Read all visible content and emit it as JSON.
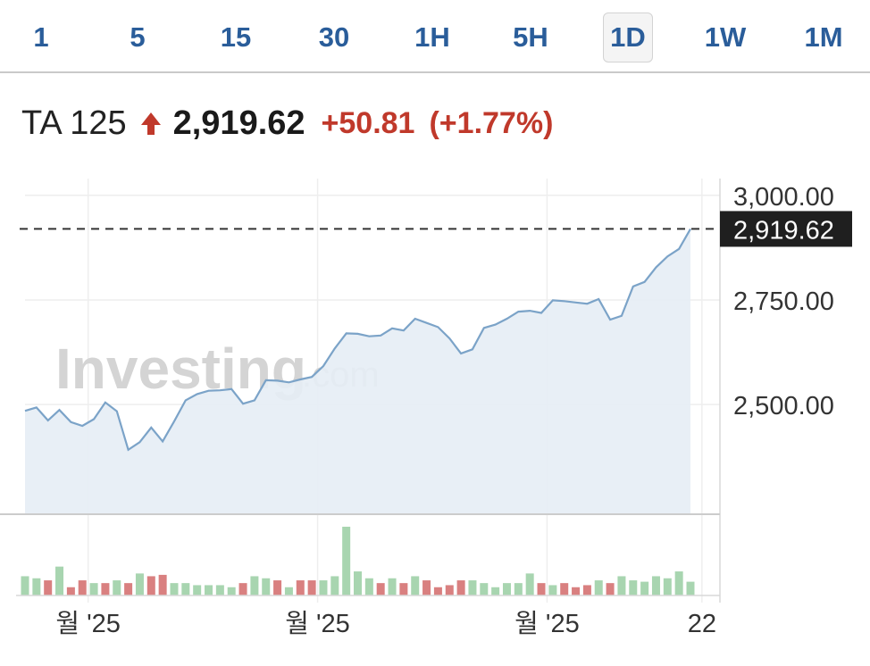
{
  "tabs": [
    {
      "label": "1",
      "active": false
    },
    {
      "label": "5",
      "active": false
    },
    {
      "label": "15",
      "active": false
    },
    {
      "label": "30",
      "active": false
    },
    {
      "label": "1H",
      "active": false
    },
    {
      "label": "5H",
      "active": false
    },
    {
      "label": "1D",
      "active": true
    },
    {
      "label": "1W",
      "active": false
    },
    {
      "label": "1M",
      "active": false
    }
  ],
  "quote": {
    "name": "TA 125",
    "direction_icon": "arrow-up-icon",
    "price": "2,919.62",
    "change": "+50.81",
    "change_pct": "(+1.77%)",
    "change_color": "#c0392b"
  },
  "watermark": {
    "main": "Investing",
    "suffix": ".com"
  },
  "chart_data": {
    "type": "area",
    "ylim": [
      2240,
      3040
    ],
    "yticks": [
      {
        "value": 2500,
        "label": "2,500.00"
      },
      {
        "value": 2750,
        "label": "2,750.00"
      },
      {
        "value": 3000,
        "label": "3,000.00"
      }
    ],
    "x_tick_labels": [
      {
        "index": 5.5,
        "label": "월 '25"
      },
      {
        "index": 25.5,
        "label": "월 '25"
      },
      {
        "index": 45.5,
        "label": "월 '25"
      },
      {
        "index": 59,
        "label": "22"
      }
    ],
    "last_price": {
      "value": 2919.62,
      "label": "2,919.62"
    },
    "series": [
      {
        "values": [
          2485,
          2493,
          2462,
          2487,
          2458,
          2449,
          2465,
          2505,
          2484,
          2392,
          2410,
          2445,
          2412,
          2460,
          2510,
          2525,
          2533,
          2534,
          2537,
          2502,
          2510,
          2558,
          2557,
          2553,
          2560,
          2566,
          2592,
          2634,
          2670,
          2669,
          2663,
          2665,
          2682,
          2677,
          2705,
          2695,
          2685,
          2658,
          2622,
          2632,
          2683,
          2691,
          2705,
          2722,
          2724,
          2719,
          2749,
          2747,
          2744,
          2741,
          2752,
          2703,
          2712,
          2782,
          2793,
          2828,
          2854,
          2872,
          2919.62
        ],
        "volume": [
          0.28,
          0.25,
          0.22,
          0.42,
          0.12,
          0.22,
          0.18,
          0.18,
          0.22,
          0.18,
          0.32,
          0.28,
          0.3,
          0.18,
          0.18,
          0.15,
          0.15,
          0.15,
          0.12,
          0.18,
          0.28,
          0.25,
          0.22,
          0.12,
          0.22,
          0.22,
          0.22,
          0.28,
          1.0,
          0.35,
          0.25,
          0.18,
          0.25,
          0.18,
          0.28,
          0.22,
          0.12,
          0.15,
          0.22,
          0.22,
          0.18,
          0.12,
          0.18,
          0.18,
          0.32,
          0.18,
          0.15,
          0.18,
          0.12,
          0.15,
          0.22,
          0.18,
          0.28,
          0.22,
          0.2,
          0.28,
          0.25,
          0.35,
          0.2
        ],
        "volume_direction": [
          "up",
          "up",
          "down",
          "up",
          "down",
          "down",
          "up",
          "down",
          "up",
          "down",
          "up",
          "down",
          "down",
          "up",
          "up",
          "up",
          "up",
          "up",
          "up",
          "down",
          "up",
          "up",
          "down",
          "up",
          "down",
          "down",
          "up",
          "up",
          "up",
          "up",
          "up",
          "down",
          "up",
          "down",
          "up",
          "down",
          "down",
          "down",
          "down",
          "up",
          "up",
          "up",
          "up",
          "up",
          "up",
          "down",
          "up",
          "down",
          "down",
          "down",
          "up",
          "down",
          "up",
          "up",
          "up",
          "up",
          "up",
          "up",
          "up"
        ]
      }
    ],
    "colors": {
      "line": "#7ba3c8",
      "area": "#e6edf5",
      "volume_up": "#a8d5b0",
      "volume_down": "#d98080",
      "volume_big": "#a3cfa8"
    },
    "grid": true,
    "volume_panel": true
  }
}
